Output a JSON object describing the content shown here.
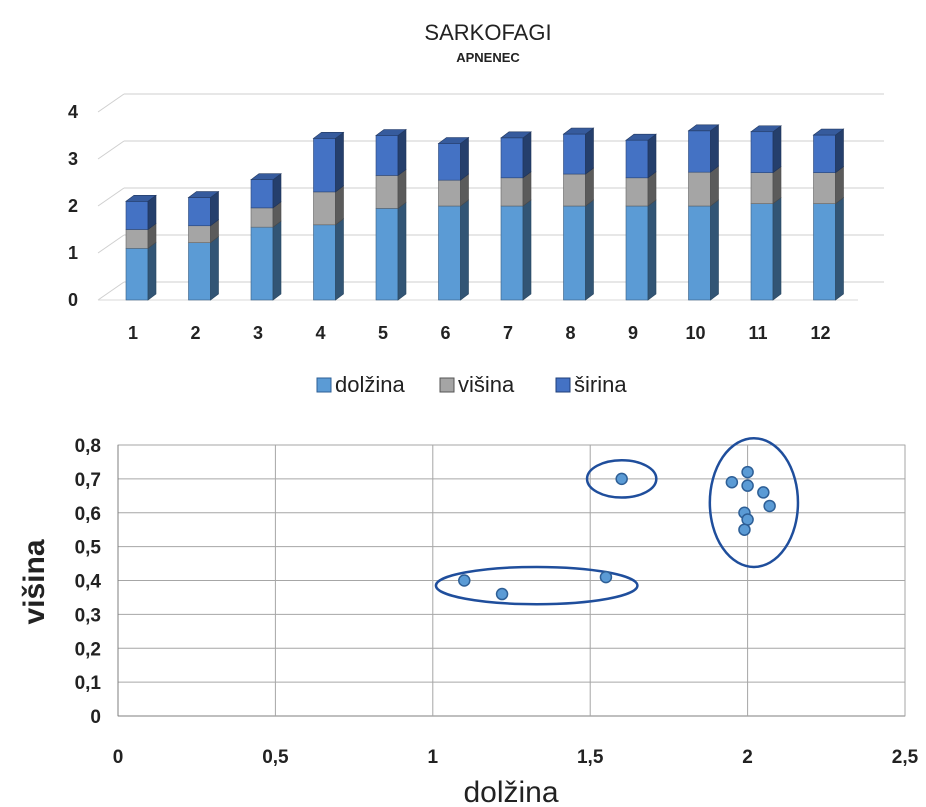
{
  "chart_data": [
    {
      "type": "bar",
      "stacked": true,
      "style": "3d-columns",
      "title": "SARKOFAGI",
      "subtitle": "APNENEC",
      "categories": [
        "1",
        "2",
        "3",
        "4",
        "5",
        "6",
        "7",
        "8",
        "9",
        "10",
        "11",
        "12"
      ],
      "series": [
        {
          "name": "dolžina",
          "values": [
            1.1,
            1.22,
            1.55,
            1.6,
            1.95,
            2.0,
            2.0,
            2.0,
            2.0,
            2.0,
            2.05,
            2.05
          ]
        },
        {
          "name": "višina",
          "values": [
            0.4,
            0.36,
            0.41,
            0.7,
            0.7,
            0.55,
            0.6,
            0.68,
            0.6,
            0.72,
            0.66,
            0.66
          ]
        },
        {
          "name": "širina",
          "values": [
            0.6,
            0.6,
            0.6,
            1.14,
            0.85,
            0.78,
            0.85,
            0.85,
            0.8,
            0.88,
            0.87,
            0.8
          ]
        }
      ],
      "yticks": [
        "0",
        "1",
        "2",
        "3",
        "4"
      ],
      "ylim": [
        0,
        4
      ],
      "grid": true,
      "legend_position": "bottom",
      "colors": {
        "dolžina": "#5b9bd5",
        "višina": "#a5a5a5",
        "širina": "#4472c4"
      }
    },
    {
      "type": "scatter",
      "xlabel": "dolžina",
      "ylabel": "višina",
      "xlim": [
        0,
        2.5
      ],
      "ylim": [
        0,
        0.8
      ],
      "xticks": [
        "0",
        "0,5",
        "1",
        "1,5",
        "2",
        "2,5"
      ],
      "yticks": [
        "0",
        "0,1",
        "0,2",
        "0,3",
        "0,4",
        "0,5",
        "0,6",
        "0,7",
        "0,8"
      ],
      "grid": true,
      "point_color": "#5b9bd5",
      "points": [
        {
          "x": 1.1,
          "y": 0.4
        },
        {
          "x": 1.22,
          "y": 0.36
        },
        {
          "x": 1.55,
          "y": 0.41
        },
        {
          "x": 1.6,
          "y": 0.7
        },
        {
          "x": 1.95,
          "y": 0.69
        },
        {
          "x": 2.0,
          "y": 0.72
        },
        {
          "x": 2.0,
          "y": 0.68
        },
        {
          "x": 2.05,
          "y": 0.66
        },
        {
          "x": 2.07,
          "y": 0.62
        },
        {
          "x": 1.99,
          "y": 0.6
        },
        {
          "x": 2.0,
          "y": 0.58
        },
        {
          "x": 1.99,
          "y": 0.55
        }
      ],
      "cluster_ellipses": [
        {
          "cx": 1.33,
          "cy": 0.385,
          "rx": 0.32,
          "ry": 0.055
        },
        {
          "cx": 1.6,
          "cy": 0.7,
          "rx": 0.11,
          "ry": 0.055
        },
        {
          "cx": 2.02,
          "cy": 0.63,
          "rx": 0.14,
          "ry": 0.19
        }
      ],
      "cluster_color": "#1f4e9c"
    }
  ]
}
